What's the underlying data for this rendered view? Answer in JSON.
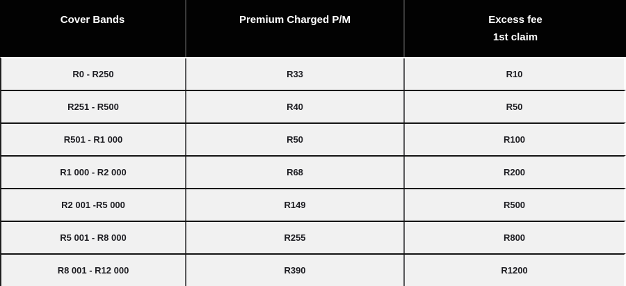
{
  "header": {
    "columns": [
      {
        "line1": "Cover Bands",
        "line2": ""
      },
      {
        "line1": "Premium Charged P/M",
        "line2": ""
      },
      {
        "line1": "Excess fee",
        "line2": "1st claim"
      }
    ]
  },
  "rows": [
    {
      "band": "R0 - R250",
      "premium": "R33",
      "excess": "R10"
    },
    {
      "band": "R251 - R500",
      "premium": "R40",
      "excess": "R50"
    },
    {
      "band": "R501 - R1 000",
      "premium": "R50",
      "excess": "R100"
    },
    {
      "band": "R1 000 - R2 000",
      "premium": "R68",
      "excess": "R200"
    },
    {
      "band": "R2 001 -R5 000",
      "premium": "R149",
      "excess": "R500"
    },
    {
      "band": "R5 001 - R8 000",
      "premium": "R255",
      "excess": "R800"
    },
    {
      "band": "R8 001 - R12 000",
      "premium": "R390",
      "excess": "R1200"
    }
  ],
  "colors": {
    "header_background": "#020202",
    "header_text": "#ffffff",
    "row_background": "#f1f1f1",
    "row_text": "#1d1d22",
    "row_separator": "#141414",
    "column_divider": "#58585a"
  },
  "chart_data": {
    "type": "table",
    "title": "Cover bands pricing table",
    "columns": [
      "Cover Bands",
      "Premium Charged P/M",
      "Excess fee 1st claim"
    ],
    "rows": [
      [
        "R0 - R250",
        "R33",
        "R10"
      ],
      [
        "R251 - R500",
        "R40",
        "R50"
      ],
      [
        "R501 - R1 000",
        "R50",
        "R100"
      ],
      [
        "R1 000 - R2 000",
        "R68",
        "R200"
      ],
      [
        "R2 001 -R5 000",
        "R149",
        "R500"
      ],
      [
        "R5 001 - R8 000",
        "R255",
        "R800"
      ],
      [
        "R8 001 - R12 000",
        "R390",
        "R1200"
      ]
    ],
    "premium_values_rand": [
      33,
      40,
      50,
      68,
      149,
      255,
      390
    ],
    "excess_values_rand": [
      10,
      50,
      100,
      200,
      500,
      800,
      1200
    ]
  }
}
